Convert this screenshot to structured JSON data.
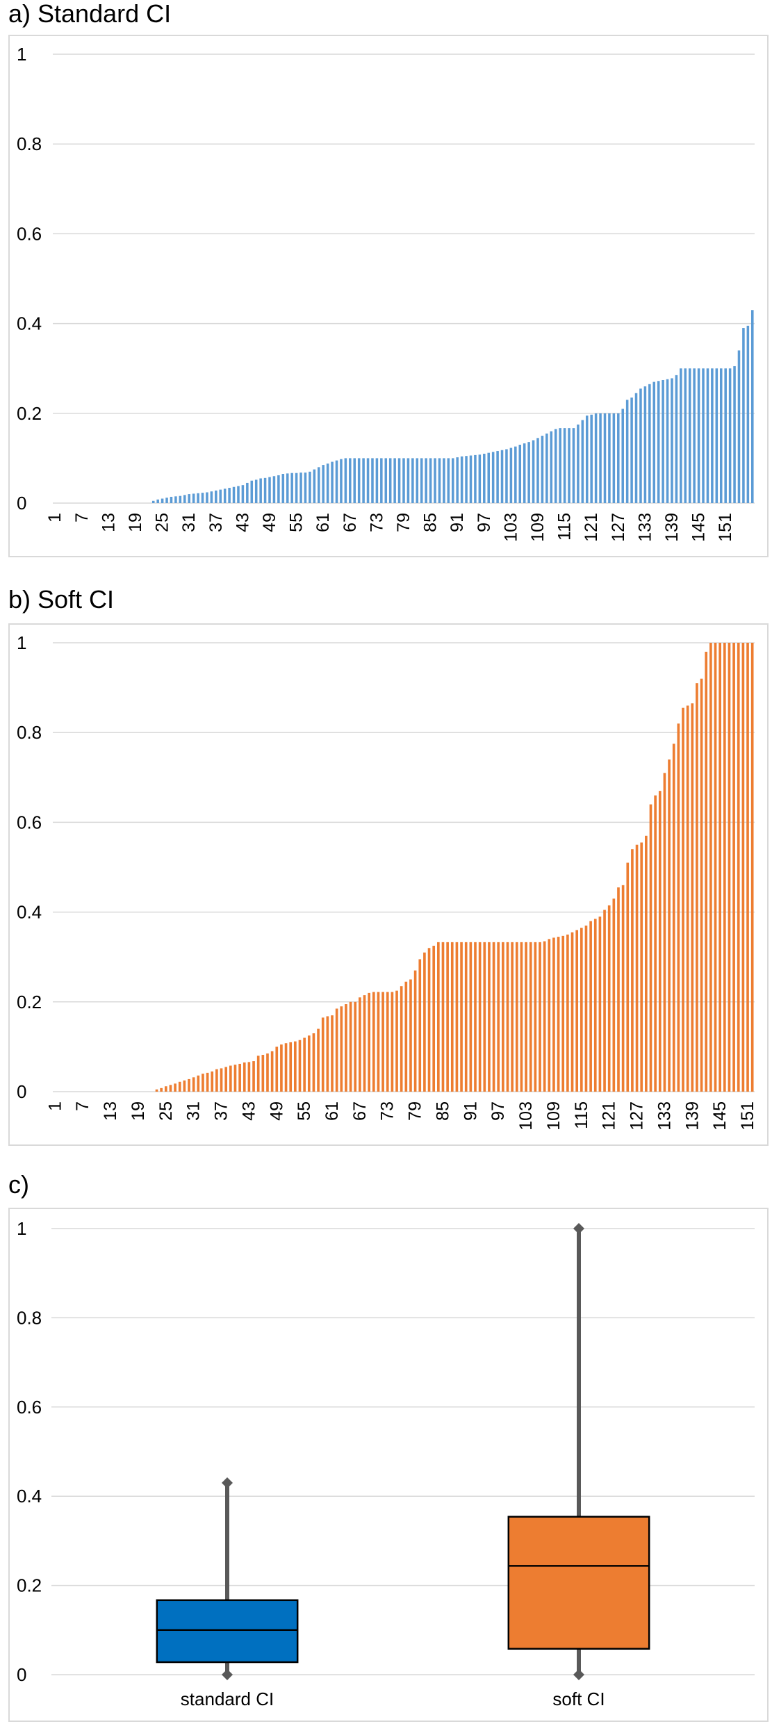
{
  "panels": {
    "a": {
      "title": "a) Standard CI"
    },
    "b": {
      "title": "b) Soft CI"
    },
    "c": {
      "title": "c)"
    }
  },
  "chart_data": [
    {
      "type": "bar",
      "title": "a) Standard CI",
      "xlabel": "",
      "ylabel": "",
      "ylim": [
        0,
        1
      ],
      "yticks": [
        "0",
        "0.2",
        "0.4",
        "0.6",
        "0.8",
        "1"
      ],
      "xtick_labels": [
        "1",
        "7",
        "13",
        "19",
        "25",
        "31",
        "37",
        "43",
        "49",
        "55",
        "61",
        "67",
        "73",
        "79",
        "85",
        "91",
        "97",
        "103",
        "109",
        "115",
        "121",
        "127",
        "133",
        "139",
        "145",
        "151"
      ],
      "grid": true,
      "color": "#5b9bd5",
      "values": [
        0,
        0,
        0,
        0,
        0,
        0,
        0,
        0,
        0,
        0,
        0,
        0,
        0,
        0,
        0,
        0,
        0,
        0,
        0,
        0,
        0,
        0,
        0.005,
        0.008,
        0.01,
        0.012,
        0.014,
        0.015,
        0.016,
        0.018,
        0.02,
        0.021,
        0.022,
        0.023,
        0.024,
        0.026,
        0.028,
        0.03,
        0.032,
        0.034,
        0.036,
        0.038,
        0.04,
        0.045,
        0.05,
        0.052,
        0.055,
        0.056,
        0.058,
        0.06,
        0.062,
        0.065,
        0.066,
        0.067,
        0.067,
        0.068,
        0.068,
        0.07,
        0.075,
        0.08,
        0.085,
        0.088,
        0.092,
        0.095,
        0.098,
        0.1,
        0.1,
        0.1,
        0.1,
        0.1,
        0.1,
        0.1,
        0.1,
        0.1,
        0.1,
        0.1,
        0.1,
        0.1,
        0.1,
        0.1,
        0.1,
        0.1,
        0.1,
        0.1,
        0.1,
        0.1,
        0.1,
        0.1,
        0.1,
        0.1,
        0.102,
        0.104,
        0.105,
        0.106,
        0.107,
        0.108,
        0.11,
        0.112,
        0.114,
        0.116,
        0.118,
        0.12,
        0.123,
        0.126,
        0.13,
        0.133,
        0.136,
        0.14,
        0.145,
        0.15,
        0.155,
        0.16,
        0.165,
        0.167,
        0.167,
        0.167,
        0.167,
        0.175,
        0.185,
        0.195,
        0.197,
        0.2,
        0.2,
        0.2,
        0.2,
        0.2,
        0.2,
        0.21,
        0.23,
        0.235,
        0.245,
        0.255,
        0.26,
        0.265,
        0.27,
        0.272,
        0.274,
        0.276,
        0.278,
        0.285,
        0.3,
        0.3,
        0.3,
        0.3,
        0.3,
        0.3,
        0.3,
        0.3,
        0.3,
        0.3,
        0.3,
        0.3,
        0.305,
        0.34,
        0.39,
        0.395,
        0.43
      ]
    },
    {
      "type": "bar",
      "title": "b) Soft CI",
      "xlabel": "",
      "ylabel": "",
      "ylim": [
        0,
        1
      ],
      "yticks": [
        "0",
        "0.2",
        "0.4",
        "0.6",
        "0.8",
        "1"
      ],
      "xtick_labels": [
        "1",
        "7",
        "13",
        "19",
        "25",
        "31",
        "37",
        "43",
        "49",
        "55",
        "61",
        "67",
        "73",
        "79",
        "85",
        "91",
        "97",
        "103",
        "109",
        "115",
        "121",
        "127",
        "133",
        "139",
        "145",
        "151"
      ],
      "grid": true,
      "color": "#ed7d31",
      "values": [
        0,
        0,
        0,
        0,
        0,
        0,
        0,
        0,
        0,
        0,
        0,
        0,
        0,
        0,
        0,
        0,
        0,
        0,
        0,
        0,
        0,
        0,
        0.005,
        0.008,
        0.012,
        0.015,
        0.018,
        0.022,
        0.025,
        0.028,
        0.032,
        0.036,
        0.04,
        0.042,
        0.045,
        0.05,
        0.052,
        0.055,
        0.058,
        0.06,
        0.062,
        0.065,
        0.066,
        0.068,
        0.08,
        0.082,
        0.085,
        0.09,
        0.1,
        0.105,
        0.108,
        0.11,
        0.112,
        0.115,
        0.12,
        0.125,
        0.13,
        0.14,
        0.165,
        0.168,
        0.17,
        0.185,
        0.19,
        0.195,
        0.2,
        0.2,
        0.21,
        0.215,
        0.22,
        0.222,
        0.222,
        0.222,
        0.222,
        0.222,
        0.225,
        0.235,
        0.245,
        0.25,
        0.27,
        0.295,
        0.31,
        0.32,
        0.325,
        0.333,
        0.333,
        0.333,
        0.333,
        0.333,
        0.333,
        0.333,
        0.333,
        0.333,
        0.333,
        0.333,
        0.333,
        0.333,
        0.333,
        0.333,
        0.333,
        0.333,
        0.333,
        0.333,
        0.333,
        0.333,
        0.333,
        0.333,
        0.335,
        0.34,
        0.343,
        0.345,
        0.347,
        0.35,
        0.355,
        0.36,
        0.365,
        0.37,
        0.38,
        0.385,
        0.39,
        0.405,
        0.415,
        0.43,
        0.455,
        0.46,
        0.51,
        0.54,
        0.55,
        0.555,
        0.57,
        0.64,
        0.66,
        0.67,
        0.71,
        0.74,
        0.775,
        0.82,
        0.855,
        0.86,
        0.865,
        0.91,
        0.92,
        0.98,
        1,
        1,
        1,
        1,
        1,
        1,
        1,
        1,
        1,
        1
      ]
    },
    {
      "type": "box",
      "title": "c)",
      "xlabel": "",
      "ylabel": "",
      "ylim": [
        0,
        1
      ],
      "yticks": [
        "0",
        "0.2",
        "0.4",
        "0.6",
        "0.8",
        "1"
      ],
      "grid": true,
      "categories": [
        "standard CI",
        "soft CI"
      ],
      "boxes": [
        {
          "name": "standard CI",
          "min": 0,
          "q1": 0.028,
          "median": 0.1,
          "q3": 0.167,
          "max": 0.43,
          "color": "#0070c0"
        },
        {
          "name": "soft CI",
          "min": 0,
          "q1": 0.058,
          "median": 0.244,
          "q3": 0.354,
          "max": 1,
          "color": "#ed7d31"
        }
      ]
    }
  ]
}
